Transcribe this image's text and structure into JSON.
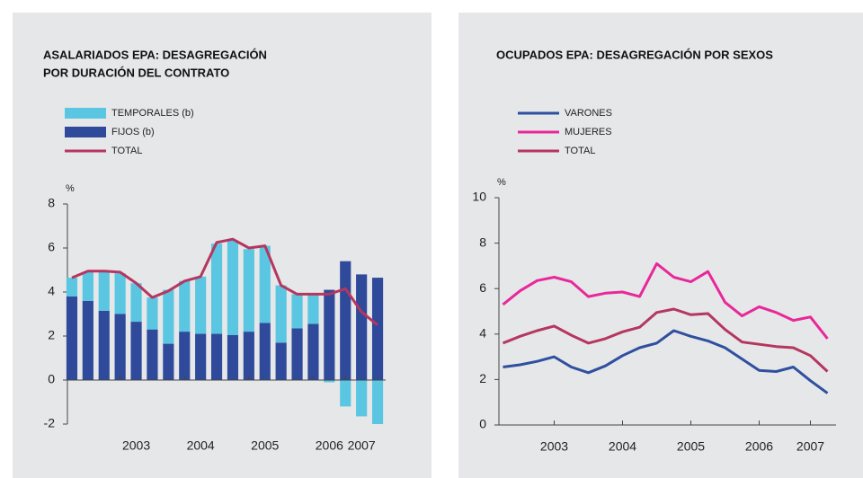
{
  "chart_data": [
    {
      "type": "bar",
      "title": [
        "ASALARIADOS EPA: DESAGREGACIÓN",
        "POR DURACIÓN DEL CONTRATO"
      ],
      "y_unit": "%",
      "categories": [
        null,
        null,
        null,
        null,
        "2003",
        null,
        null,
        null,
        "2004",
        null,
        null,
        null,
        "2005",
        null,
        null,
        null,
        "2006",
        null,
        "2007",
        null
      ],
      "series": [
        {
          "name": "TEMPORALES (b)",
          "type": "bar",
          "color": "#5ac6e2",
          "values": [
            0.85,
            1.3,
            1.75,
            1.85,
            1.75,
            1.45,
            2.45,
            2.3,
            2.6,
            4.1,
            4.3,
            3.75,
            3.5,
            2.6,
            1.55,
            1.35,
            -0.1,
            -1.2,
            -1.65,
            -2.0
          ]
        },
        {
          "name": "FIJOS (b)",
          "type": "bar",
          "color": "#2f4a9a",
          "values": [
            3.8,
            3.6,
            3.15,
            3.0,
            2.65,
            2.3,
            1.65,
            2.2,
            2.1,
            2.1,
            2.05,
            2.2,
            2.6,
            1.7,
            2.35,
            2.55,
            4.1,
            5.4,
            4.8,
            4.65
          ]
        },
        {
          "name": "TOTAL",
          "type": "line",
          "color": "#b5365e",
          "values": [
            4.65,
            4.95,
            4.95,
            4.9,
            4.4,
            3.75,
            4.05,
            4.5,
            4.7,
            6.25,
            6.4,
            6.0,
            6.1,
            4.3,
            3.9,
            3.9,
            3.9,
            4.15,
            3.1,
            2.5
          ]
        }
      ],
      "ylim": [
        -2,
        8
      ],
      "yticks": [
        -2,
        0,
        2,
        4,
        6,
        8
      ]
    },
    {
      "type": "line",
      "title": [
        "OCUPADOS EPA: DESAGREGACIÓN POR SEXOS"
      ],
      "y_unit": "%",
      "categories": [
        null,
        null,
        null,
        "2003",
        null,
        null,
        null,
        "2004",
        null,
        null,
        null,
        "2005",
        null,
        null,
        null,
        "2006",
        null,
        null,
        "2007",
        null
      ],
      "series": [
        {
          "name": "VARONES",
          "type": "line",
          "color": "#2f4f9f",
          "values": [
            2.55,
            2.65,
            2.8,
            3.0,
            2.55,
            2.3,
            2.6,
            3.05,
            3.4,
            3.6,
            4.15,
            3.9,
            3.7,
            3.4,
            2.9,
            2.4,
            2.35,
            2.55,
            1.95,
            1.4
          ]
        },
        {
          "name": "MUJERES",
          "type": "line",
          "color": "#e8289a",
          "values": [
            5.3,
            5.9,
            6.35,
            6.5,
            6.3,
            5.65,
            5.8,
            5.85,
            5.65,
            7.1,
            6.5,
            6.3,
            6.75,
            5.4,
            4.8,
            5.2,
            4.95,
            4.6,
            4.75,
            3.8
          ]
        },
        {
          "name": "TOTAL",
          "type": "line",
          "color": "#b5365e",
          "values": [
            3.6,
            3.9,
            4.15,
            4.35,
            3.95,
            3.6,
            3.8,
            4.1,
            4.3,
            4.95,
            5.1,
            4.85,
            4.9,
            4.2,
            3.65,
            3.55,
            3.45,
            3.4,
            3.05,
            2.35
          ]
        }
      ],
      "ylim": [
        0,
        10
      ],
      "yticks": [
        0,
        2,
        4,
        6,
        8,
        10
      ]
    }
  ]
}
